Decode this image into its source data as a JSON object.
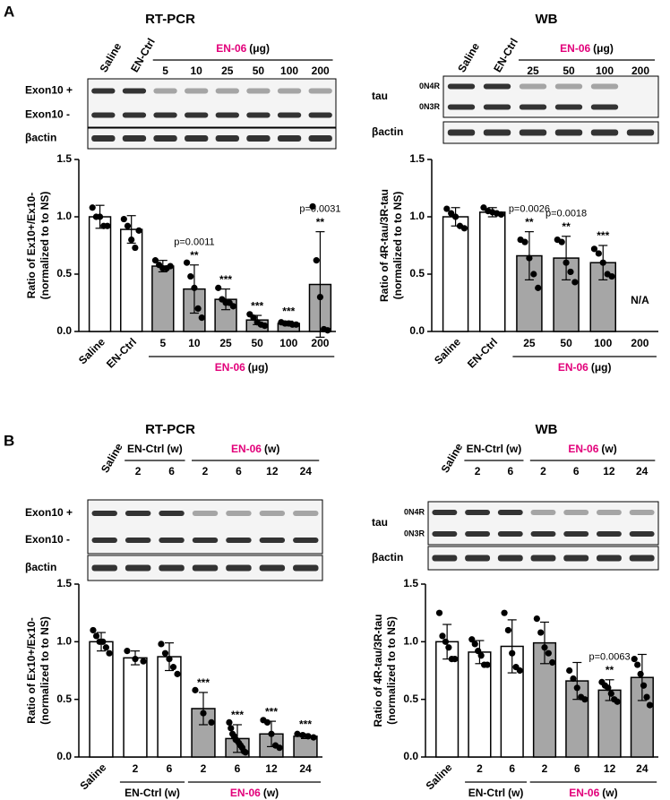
{
  "panels": [
    "A",
    "B"
  ],
  "chart_data": [
    {
      "type": "bar",
      "title": "RT-PCR",
      "ylabel": [
        "Ratio of Ex10+/Ex10-",
        "(normalized to to NS)"
      ],
      "ylim": [
        0,
        1.5
      ],
      "yticks": [
        {
          "value": 0,
          "label": "0.0"
        },
        {
          "value": 0.5,
          "label": "0.5"
        },
        {
          "value": 1,
          "label": "1.0"
        },
        {
          "value": 1.5,
          "label": "1.5"
        }
      ],
      "blot": {
        "rows": [
          "Exon10 +",
          "Exon10 -"
        ],
        "control": "βactin"
      },
      "groups": [
        {
          "color": "#ffffff",
          "categories": [
            "Saline",
            "EN-Ctrl"
          ],
          "values": [
            1.0,
            0.89
          ],
          "errors": [
            0.1,
            0.12
          ],
          "points": [
            [
              1.08,
              1.0,
              1.0,
              0.92,
              0.92
            ],
            [
              0.98,
              0.92,
              0.8,
              0.73,
              0.88
            ]
          ],
          "annotations": [
            null,
            null
          ]
        },
        {
          "label": "EN-06",
          "unit": "(μg)",
          "label_color": "#e2007a",
          "color": "#a6a6a6",
          "categories": [
            "5",
            "10",
            "25",
            "50",
            "100",
            "200"
          ],
          "values": [
            0.57,
            0.37,
            0.28,
            0.1,
            0.07,
            0.41
          ],
          "errors": [
            0.05,
            0.21,
            0.09,
            0.04,
            0.02,
            0.46
          ],
          "points": [
            [
              0.62,
              0.58,
              0.55,
              0.55,
              0.57
            ],
            [
              0.6,
              0.48,
              0.38,
              0.2,
              0.12
            ],
            [
              0.38,
              0.28,
              0.25,
              0.25,
              0.22
            ],
            [
              0.15,
              0.12,
              0.08,
              0.06,
              0.05
            ],
            [
              0.08,
              0.07,
              0.07,
              0.06,
              0.06
            ],
            [
              1.09,
              0.62,
              0.3,
              0.02,
              0.01
            ]
          ],
          "annotations": [
            null,
            [
              "p=0.0011",
              "**"
            ],
            [
              "***"
            ],
            [
              "***"
            ],
            [
              "***"
            ],
            [
              "p=0.0031",
              "**"
            ]
          ]
        }
      ]
    },
    {
      "type": "bar",
      "title": "WB",
      "ylabel": [
        "Ratio of 4R-tau/3R-tau",
        "(normalized to to NS)"
      ],
      "ylim": [
        0,
        1.5
      ],
      "yticks": [
        {
          "value": 0,
          "label": "0.0"
        },
        {
          "value": 0.5,
          "label": "0.5"
        },
        {
          "value": 1,
          "label": "1.0"
        },
        {
          "value": 1.5,
          "label": "1.5"
        }
      ],
      "blot": {
        "protein": "tau",
        "rows": [
          "0N4R",
          "0N3R"
        ],
        "control": "βactin"
      },
      "missing_label": "N/A",
      "groups": [
        {
          "color": "#ffffff",
          "categories": [
            "Saline",
            "EN-Ctrl"
          ],
          "values": [
            1.0,
            1.04
          ],
          "errors": [
            0.08,
            0.04
          ],
          "points": [
            [
              1.07,
              1.03,
              1.0,
              0.92,
              0.9
            ],
            [
              1.08,
              1.05,
              1.04,
              1.03,
              1.02
            ]
          ],
          "annotations": [
            null,
            null
          ]
        },
        {
          "label": "EN-06",
          "unit": "(μg)",
          "label_color": "#e2007a",
          "color": "#a6a6a6",
          "categories": [
            "25",
            "50",
            "100",
            "200"
          ],
          "values": [
            0.66,
            0.64,
            0.6,
            null
          ],
          "errors": [
            0.21,
            0.19,
            0.15,
            null
          ],
          "points": [
            [
              0.8,
              0.78,
              0.64,
              0.5,
              0.38
            ],
            [
              0.8,
              0.78,
              0.6,
              0.52,
              0.43
            ],
            [
              0.72,
              0.68,
              0.6,
              0.5,
              0.48
            ],
            []
          ],
          "annotations": [
            [
              "p=0.0026",
              "**"
            ],
            [
              "p=0.0018",
              "**"
            ],
            [
              "***"
            ],
            null
          ]
        }
      ]
    },
    {
      "type": "bar",
      "title": "RT-PCR",
      "ylabel": [
        "Ratio of Ex10+/Ex10-",
        "(normalized to to NS)"
      ],
      "ylim": [
        0,
        1.5
      ],
      "yticks": [
        {
          "value": 0,
          "label": "0.0"
        },
        {
          "value": 0.5,
          "label": "0.5"
        },
        {
          "value": 1,
          "label": "1.0"
        },
        {
          "value": 1.5,
          "label": "1.5"
        }
      ],
      "blot": {
        "rows": [
          "Exon10 +",
          "Exon10 -"
        ],
        "control": "βactin"
      },
      "groups": [
        {
          "color": "#ffffff",
          "categories": [
            "Saline"
          ],
          "values": [
            1.0
          ],
          "errors": [
            0.08
          ],
          "points": [
            [
              1.1,
              1.05,
              1.0,
              1.0,
              0.95,
              0.9
            ]
          ],
          "annotations": [
            null
          ]
        },
        {
          "label": "EN-Ctrl",
          "unit": "(w)",
          "label_color": "#000000",
          "color": "#ffffff",
          "categories": [
            "2",
            "6"
          ],
          "values": [
            0.86,
            0.87
          ],
          "errors": [
            0.06,
            0.12
          ],
          "points": [
            [
              0.92,
              0.85,
              0.83
            ],
            [
              0.98,
              0.9,
              0.85,
              0.78,
              0.72
            ]
          ],
          "annotations": [
            null,
            null
          ]
        },
        {
          "label": "EN-06",
          "unit": "(w)",
          "label_color": "#e2007a",
          "color": "#a6a6a6",
          "categories": [
            "2",
            "6",
            "12",
            "24"
          ],
          "values": [
            0.42,
            0.16,
            0.2,
            0.18
          ],
          "errors": [
            0.14,
            0.12,
            0.11,
            0.02
          ],
          "points": [
            [
              0.58,
              0.38,
              0.3
            ],
            [
              0.3,
              0.25,
              0.2,
              0.18,
              0.15,
              0.14,
              0.12,
              0.1,
              0.08,
              0.05,
              0.04
            ],
            [
              0.32,
              0.3,
              0.2,
              0.1,
              0.08
            ],
            [
              0.2,
              0.19,
              0.18,
              0.17
            ]
          ],
          "annotations": [
            [
              "***"
            ],
            [
              "***"
            ],
            [
              "***"
            ],
            [
              "***"
            ]
          ]
        }
      ]
    },
    {
      "type": "bar",
      "title": "WB",
      "ylabel": [
        "Ratio of 4R-tau/3R-tau",
        "(normalized to to NS)"
      ],
      "ylim": [
        0,
        1.5
      ],
      "yticks": [
        {
          "value": 0,
          "label": "0.0"
        },
        {
          "value": 0.5,
          "label": "0.5"
        },
        {
          "value": 1,
          "label": "1.0"
        },
        {
          "value": 1.5,
          "label": "1.5"
        }
      ],
      "blot": {
        "protein": "tau",
        "rows": [
          "0N4R",
          "0N3R"
        ],
        "control": "βactin"
      },
      "groups": [
        {
          "color": "#ffffff",
          "categories": [
            "Saline"
          ],
          "values": [
            1.0
          ],
          "errors": [
            0.15
          ],
          "points": [
            [
              1.25,
              1.05,
              1.0,
              0.95,
              0.85,
              0.85
            ]
          ],
          "annotations": [
            null
          ]
        },
        {
          "label": "EN-Ctrl",
          "unit": "(w)",
          "label_color": "#000000",
          "color": "#ffffff",
          "categories": [
            "2",
            "6"
          ],
          "values": [
            0.91,
            0.96
          ],
          "errors": [
            0.1,
            0.23
          ],
          "points": [
            [
              1.02,
              0.98,
              0.92,
              0.88,
              0.8,
              0.8
            ],
            [
              1.25,
              1.1,
              0.9,
              0.78,
              0.75
            ]
          ],
          "annotations": [
            null,
            null
          ]
        },
        {
          "label": "EN-06",
          "unit": "(w)",
          "label_color": "#e2007a",
          "color": "#a6a6a6",
          "categories": [
            "2",
            "6",
            "12",
            "24"
          ],
          "values": [
            0.99,
            0.66,
            0.58,
            0.69
          ],
          "errors": [
            0.18,
            0.16,
            0.09,
            0.2
          ],
          "points": [
            [
              1.2,
              1.08,
              0.95,
              0.9,
              0.82
            ],
            [
              0.75,
              0.68,
              0.6,
              0.52,
              0.5
            ],
            [
              0.65,
              0.62,
              0.6,
              0.55,
              0.5,
              0.48
            ],
            [
              0.85,
              0.8,
              0.72,
              0.62,
              0.52,
              0.45
            ]
          ],
          "annotations": [
            null,
            null,
            [
              "p=0.0063",
              "**"
            ],
            null
          ]
        }
      ]
    }
  ]
}
